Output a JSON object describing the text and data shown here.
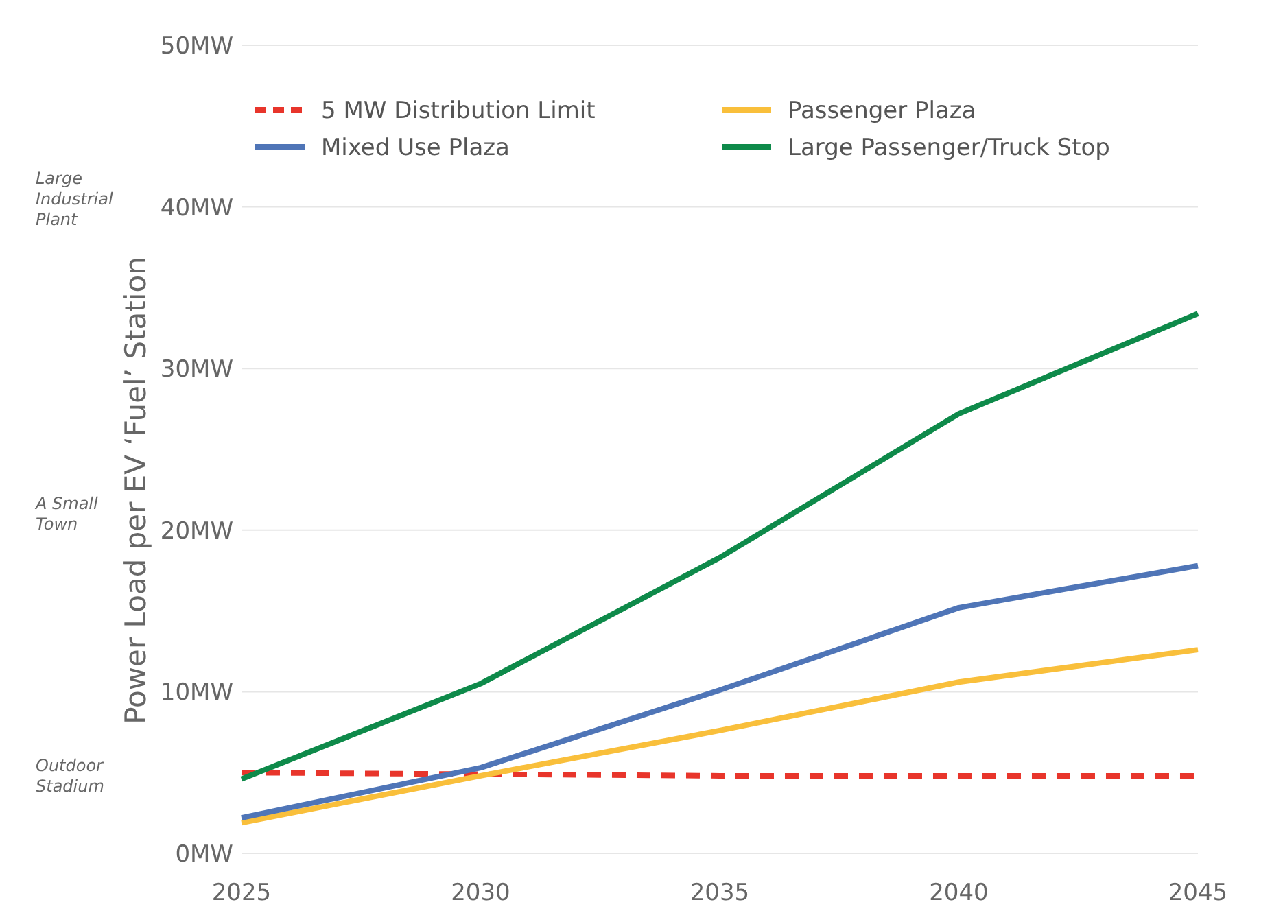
{
  "chart_data": {
    "type": "line",
    "ylabel": "Power Load per EV ‘Fuel’ Station",
    "x": [
      2025,
      2030,
      2035,
      2040,
      2045
    ],
    "xlim": [
      2025,
      2045
    ],
    "xticks": [
      2025,
      2030,
      2035,
      2040,
      2045
    ],
    "ylim": [
      0,
      50
    ],
    "yticks": [
      {
        "value": 0,
        "label": "0MW"
      },
      {
        "value": 10,
        "label": "10MW"
      },
      {
        "value": 20,
        "label": "20MW"
      },
      {
        "value": 30,
        "label": "30MW"
      },
      {
        "value": 40,
        "label": "40MW"
      },
      {
        "value": 50,
        "label": "50MW"
      }
    ],
    "grid": "y",
    "legend": "top",
    "marker": "none",
    "series": [
      {
        "name": "5 MW Distribution Limit",
        "color": "#e8352b",
        "line_style": "dashed",
        "values": [
          5.0,
          4.9,
          4.8,
          4.8,
          4.8
        ]
      },
      {
        "name": "Passenger Plaza",
        "color": "#f9bf3b",
        "values": [
          1.9,
          4.8,
          7.6,
          10.6,
          12.6
        ]
      },
      {
        "name": "Mixed Use Plaza",
        "color": "#4f75b7",
        "values": [
          2.2,
          5.3,
          10.1,
          15.2,
          17.8
        ]
      },
      {
        "name": "Large Passenger/Truck Stop",
        "color": "#0e8a4a",
        "values": [
          4.6,
          10.5,
          18.3,
          27.2,
          33.4
        ]
      }
    ],
    "annotations": [
      "Large Industrial Plant",
      "A Small Town",
      "Outdoor Stadium"
    ]
  }
}
